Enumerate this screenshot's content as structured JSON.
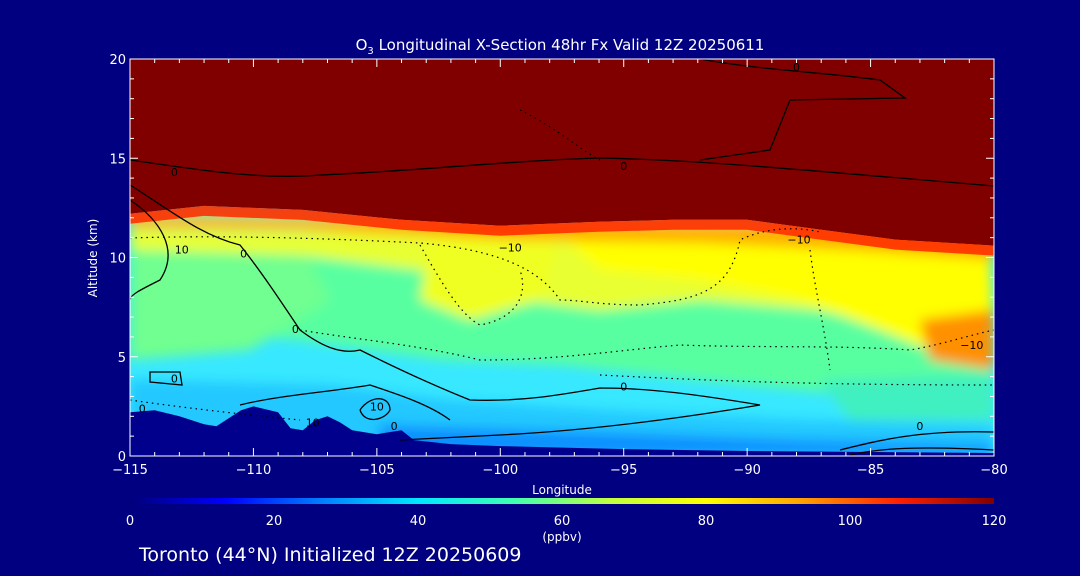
{
  "chart_data": {
    "type": "heatmap",
    "title_prefix": "O",
    "title_subscript": "3",
    "title_suffix": " Longitudinal X-Section 48hr  Fx Valid 12Z 20250611",
    "xlabel": "Longitude",
    "ylabel": "Altitude (km)",
    "xlim": [
      -115,
      -80
    ],
    "ylim": [
      0,
      20
    ],
    "x_ticks": [
      -115,
      -110,
      -105,
      -100,
      -95,
      -90,
      -85,
      -80
    ],
    "x_tick_labels": [
      "−115",
      "−110",
      "−105",
      "−100",
      "−95",
      "−90",
      "−85",
      "−80"
    ],
    "y_ticks": [
      0,
      5,
      10,
      15,
      20
    ],
    "y_tick_labels": [
      "0",
      "5",
      "10",
      "15",
      "20"
    ],
    "colorbar": {
      "label": "(ppbv)",
      "range": [
        0,
        120
      ],
      "ticks": [
        0,
        20,
        40,
        60,
        80,
        100,
        120
      ],
      "tick_labels": [
        "0",
        "20",
        "40",
        "60",
        "80",
        "100",
        "120"
      ],
      "colors": [
        "#00007a",
        "#0000ff",
        "#0080ff",
        "#00e8ff",
        "#40ffb0",
        "#c0ff40",
        "#ffff00",
        "#ffa000",
        "#ff2000",
        "#800000"
      ]
    },
    "tropopause_height_km": [
      [
        -115,
        12.2
      ],
      [
        -112,
        12.6
      ],
      [
        -108,
        12.4
      ],
      [
        -104,
        11.9
      ],
      [
        -100,
        11.6
      ],
      [
        -96,
        11.8
      ],
      [
        -93,
        11.9
      ],
      [
        -90,
        11.9
      ],
      [
        -87,
        11.4
      ],
      [
        -84,
        10.9
      ],
      [
        -80,
        10.6
      ]
    ],
    "terrain_km": [
      [
        -115,
        2.2
      ],
      [
        -114,
        2.3
      ],
      [
        -113,
        2.0
      ],
      [
        -112,
        1.6
      ],
      [
        -111.5,
        1.5
      ],
      [
        -110.5,
        2.3
      ],
      [
        -110,
        2.5
      ],
      [
        -109,
        2.2
      ],
      [
        -108.5,
        1.4
      ],
      [
        -108,
        1.3
      ],
      [
        -107.5,
        1.8
      ],
      [
        -107,
        2.0
      ],
      [
        -106.5,
        1.7
      ],
      [
        -106,
        1.3
      ],
      [
        -105,
        1.1
      ],
      [
        -104,
        1.3
      ],
      [
        -103.5,
        0.8
      ],
      [
        -102,
        0.6
      ],
      [
        -100,
        0.5
      ],
      [
        -95,
        0.35
      ],
      [
        -90,
        0.25
      ],
      [
        -85,
        0.2
      ],
      [
        -80,
        0.15
      ]
    ],
    "contour_labels": [
      {
        "text": "0",
        "lon": -113.2,
        "alt": 14.3
      },
      {
        "text": "0",
        "lon": -110.4,
        "alt": 10.2
      },
      {
        "text": "10",
        "lon": -112.9,
        "alt": 10.4
      },
      {
        "text": "0",
        "lon": -108.3,
        "alt": 6.4
      },
      {
        "text": "0",
        "lon": -113.2,
        "alt": 3.9
      },
      {
        "text": "0",
        "lon": -114.5,
        "alt": 2.4
      },
      {
        "text": "10",
        "lon": -107.6,
        "alt": 1.7
      },
      {
        "text": "10",
        "lon": -105.0,
        "alt": 2.5
      },
      {
        "text": "0",
        "lon": -104.3,
        "alt": 1.5
      },
      {
        "text": "−10",
        "lon": -99.6,
        "alt": 10.5
      },
      {
        "text": "0",
        "lon": -95.0,
        "alt": 3.5
      },
      {
        "text": "−10",
        "lon": -87.9,
        "alt": 10.9
      },
      {
        "text": "0",
        "lon": -95.0,
        "alt": 14.6
      },
      {
        "text": "0",
        "lon": -88.0,
        "alt": 19.6
      },
      {
        "text": "−10",
        "lon": -80.9,
        "alt": 5.6
      },
      {
        "text": "0",
        "lon": -83.0,
        "alt": 1.5
      }
    ]
  },
  "footer": {
    "location_text": "Toronto (44°N) Initialized 12Z 20250609"
  }
}
